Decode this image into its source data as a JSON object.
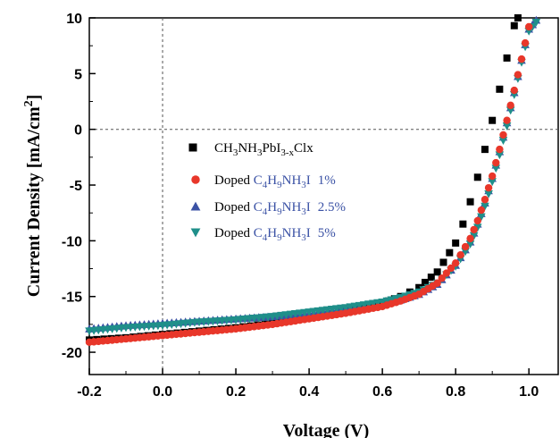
{
  "chart_data": {
    "type": "scatter",
    "title": "",
    "xlabel": "Voltage (V)",
    "ylabel": "Current Density [mA/cm2]",
    "xlim": [
      -0.2,
      1.08
    ],
    "ylim": [
      -22,
      10
    ],
    "xticks": [
      "-0.2",
      "0.0",
      "0.2",
      "0.4",
      "0.6",
      "0.8",
      "1.0"
    ],
    "yticks": [
      "-20",
      "-15",
      "-10",
      "-5",
      "0",
      "5",
      "10"
    ],
    "reference_lines": {
      "x": 0,
      "y": 0
    },
    "legend_position": "center-left",
    "series": [
      {
        "name": "CH3NH3PbI3-xClx",
        "legend": {
          "prefix": "",
          "formula": "CH3NH3PbI3-xClx",
          "suffix": ""
        },
        "marker": "square",
        "color": "#000000",
        "points": [
          [
            -0.2,
            -18.9
          ],
          [
            -0.1,
            -18.7
          ],
          [
            0.0,
            -18.4
          ],
          [
            0.1,
            -18.1
          ],
          [
            0.2,
            -17.8
          ],
          [
            0.3,
            -17.4
          ],
          [
            0.4,
            -16.9
          ],
          [
            0.5,
            -16.3
          ],
          [
            0.6,
            -15.6
          ],
          [
            0.65,
            -15.0
          ],
          [
            0.7,
            -14.2
          ],
          [
            0.75,
            -12.8
          ],
          [
            0.8,
            -10.2
          ],
          [
            0.82,
            -8.5
          ],
          [
            0.84,
            -6.5
          ],
          [
            0.86,
            -4.3
          ],
          [
            0.88,
            -1.8
          ],
          [
            0.9,
            0.8
          ],
          [
            0.92,
            3.6
          ],
          [
            0.94,
            6.4
          ],
          [
            0.96,
            9.3
          ],
          [
            0.97,
            10.0
          ]
        ]
      },
      {
        "name": "Doped C4H9NH3I 1%",
        "legend": {
          "prefix": "Doped ",
          "formula": "C4H9NH3I",
          "suffix": "1%"
        },
        "marker": "circle",
        "color": "#e8372a",
        "points": [
          [
            -0.2,
            -19.1
          ],
          [
            -0.1,
            -18.8
          ],
          [
            0.0,
            -18.5
          ],
          [
            0.1,
            -18.2
          ],
          [
            0.2,
            -17.9
          ],
          [
            0.3,
            -17.5
          ],
          [
            0.4,
            -17.0
          ],
          [
            0.5,
            -16.5
          ],
          [
            0.6,
            -15.9
          ],
          [
            0.65,
            -15.4
          ],
          [
            0.7,
            -14.8
          ],
          [
            0.75,
            -13.8
          ],
          [
            0.8,
            -12.0
          ],
          [
            0.84,
            -9.8
          ],
          [
            0.86,
            -8.2
          ],
          [
            0.88,
            -6.3
          ],
          [
            0.9,
            -4.2
          ],
          [
            0.92,
            -1.8
          ],
          [
            0.94,
            0.8
          ],
          [
            0.96,
            3.5
          ],
          [
            0.98,
            6.3
          ],
          [
            1.0,
            9.2
          ]
        ]
      },
      {
        "name": "Doped C4H9NH3I 2.5%",
        "legend": {
          "prefix": "Doped ",
          "formula": "C4H9NH3I",
          "suffix": "2.5%"
        },
        "marker": "triangle-up",
        "color": "#3b52a5",
        "points": [
          [
            -0.2,
            -17.9
          ],
          [
            -0.1,
            -17.6
          ],
          [
            0.0,
            -17.4
          ],
          [
            0.1,
            -17.2
          ],
          [
            0.2,
            -17.0
          ],
          [
            0.3,
            -16.8
          ],
          [
            0.4,
            -16.5
          ],
          [
            0.5,
            -16.1
          ],
          [
            0.6,
            -15.7
          ],
          [
            0.65,
            -15.3
          ],
          [
            0.7,
            -14.8
          ],
          [
            0.75,
            -13.9
          ],
          [
            0.8,
            -12.2
          ],
          [
            0.84,
            -10.1
          ],
          [
            0.86,
            -8.5
          ],
          [
            0.88,
            -6.6
          ],
          [
            0.9,
            -4.4
          ],
          [
            0.92,
            -2.0
          ],
          [
            0.94,
            0.6
          ],
          [
            0.96,
            3.3
          ],
          [
            0.98,
            6.2
          ],
          [
            1.0,
            9.0
          ],
          [
            1.02,
            9.8
          ]
        ]
      },
      {
        "name": "Doped C4H9NH3I 5%",
        "legend": {
          "prefix": "Doped ",
          "formula": "C4H9NH3I",
          "suffix": "5%"
        },
        "marker": "triangle-down",
        "color": "#1f8f8a",
        "points": [
          [
            -0.2,
            -18.1
          ],
          [
            -0.1,
            -17.8
          ],
          [
            0.0,
            -17.6
          ],
          [
            0.1,
            -17.3
          ],
          [
            0.2,
            -17.1
          ],
          [
            0.3,
            -16.8
          ],
          [
            0.4,
            -16.4
          ],
          [
            0.5,
            -16.0
          ],
          [
            0.6,
            -15.5
          ],
          [
            0.65,
            -15.1
          ],
          [
            0.7,
            -14.6
          ],
          [
            0.75,
            -13.8
          ],
          [
            0.8,
            -12.3
          ],
          [
            0.84,
            -10.3
          ],
          [
            0.86,
            -8.8
          ],
          [
            0.88,
            -6.9
          ],
          [
            0.9,
            -4.7
          ],
          [
            0.92,
            -2.3
          ],
          [
            0.94,
            0.3
          ],
          [
            0.96,
            3.1
          ],
          [
            0.98,
            6.0
          ],
          [
            1.0,
            8.8
          ],
          [
            1.02,
            9.6
          ]
        ]
      }
    ]
  }
}
